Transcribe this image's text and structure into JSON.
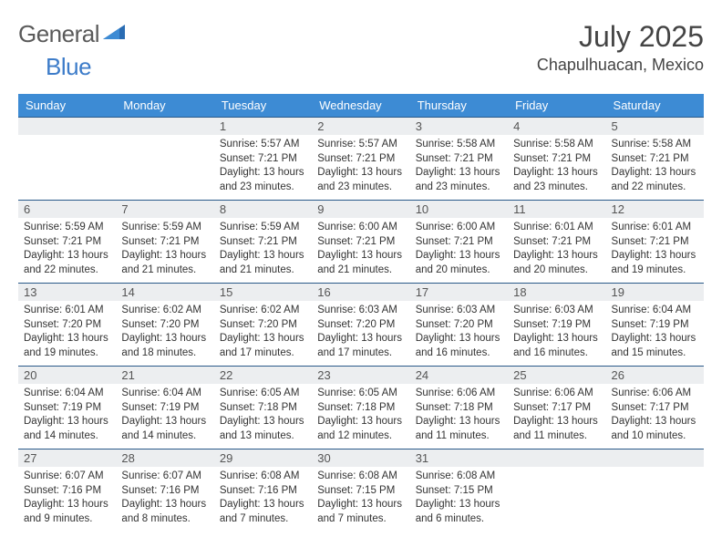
{
  "brand": {
    "word1": "General",
    "word2": "Blue"
  },
  "title": "July 2025",
  "location": "Chapulhuacan, Mexico",
  "colors": {
    "header_bg": "#3d8bd4",
    "header_text": "#ffffff",
    "daynum_bg": "#eceef0",
    "row_sep": "#2a5a8a",
    "logo_gray": "#5a5a5a",
    "logo_blue": "#3d7cc9"
  },
  "day_headers": [
    "Sunday",
    "Monday",
    "Tuesday",
    "Wednesday",
    "Thursday",
    "Friday",
    "Saturday"
  ],
  "weeks": [
    [
      {
        "num": "",
        "sunrise": "",
        "sunset": "",
        "daylight": ""
      },
      {
        "num": "",
        "sunrise": "",
        "sunset": "",
        "daylight": ""
      },
      {
        "num": "1",
        "sunrise": "Sunrise: 5:57 AM",
        "sunset": "Sunset: 7:21 PM",
        "daylight": "Daylight: 13 hours and 23 minutes."
      },
      {
        "num": "2",
        "sunrise": "Sunrise: 5:57 AM",
        "sunset": "Sunset: 7:21 PM",
        "daylight": "Daylight: 13 hours and 23 minutes."
      },
      {
        "num": "3",
        "sunrise": "Sunrise: 5:58 AM",
        "sunset": "Sunset: 7:21 PM",
        "daylight": "Daylight: 13 hours and 23 minutes."
      },
      {
        "num": "4",
        "sunrise": "Sunrise: 5:58 AM",
        "sunset": "Sunset: 7:21 PM",
        "daylight": "Daylight: 13 hours and 23 minutes."
      },
      {
        "num": "5",
        "sunrise": "Sunrise: 5:58 AM",
        "sunset": "Sunset: 7:21 PM",
        "daylight": "Daylight: 13 hours and 22 minutes."
      }
    ],
    [
      {
        "num": "6",
        "sunrise": "Sunrise: 5:59 AM",
        "sunset": "Sunset: 7:21 PM",
        "daylight": "Daylight: 13 hours and 22 minutes."
      },
      {
        "num": "7",
        "sunrise": "Sunrise: 5:59 AM",
        "sunset": "Sunset: 7:21 PM",
        "daylight": "Daylight: 13 hours and 21 minutes."
      },
      {
        "num": "8",
        "sunrise": "Sunrise: 5:59 AM",
        "sunset": "Sunset: 7:21 PM",
        "daylight": "Daylight: 13 hours and 21 minutes."
      },
      {
        "num": "9",
        "sunrise": "Sunrise: 6:00 AM",
        "sunset": "Sunset: 7:21 PM",
        "daylight": "Daylight: 13 hours and 21 minutes."
      },
      {
        "num": "10",
        "sunrise": "Sunrise: 6:00 AM",
        "sunset": "Sunset: 7:21 PM",
        "daylight": "Daylight: 13 hours and 20 minutes."
      },
      {
        "num": "11",
        "sunrise": "Sunrise: 6:01 AM",
        "sunset": "Sunset: 7:21 PM",
        "daylight": "Daylight: 13 hours and 20 minutes."
      },
      {
        "num": "12",
        "sunrise": "Sunrise: 6:01 AM",
        "sunset": "Sunset: 7:21 PM",
        "daylight": "Daylight: 13 hours and 19 minutes."
      }
    ],
    [
      {
        "num": "13",
        "sunrise": "Sunrise: 6:01 AM",
        "sunset": "Sunset: 7:20 PM",
        "daylight": "Daylight: 13 hours and 19 minutes."
      },
      {
        "num": "14",
        "sunrise": "Sunrise: 6:02 AM",
        "sunset": "Sunset: 7:20 PM",
        "daylight": "Daylight: 13 hours and 18 minutes."
      },
      {
        "num": "15",
        "sunrise": "Sunrise: 6:02 AM",
        "sunset": "Sunset: 7:20 PM",
        "daylight": "Daylight: 13 hours and 17 minutes."
      },
      {
        "num": "16",
        "sunrise": "Sunrise: 6:03 AM",
        "sunset": "Sunset: 7:20 PM",
        "daylight": "Daylight: 13 hours and 17 minutes."
      },
      {
        "num": "17",
        "sunrise": "Sunrise: 6:03 AM",
        "sunset": "Sunset: 7:20 PM",
        "daylight": "Daylight: 13 hours and 16 minutes."
      },
      {
        "num": "18",
        "sunrise": "Sunrise: 6:03 AM",
        "sunset": "Sunset: 7:19 PM",
        "daylight": "Daylight: 13 hours and 16 minutes."
      },
      {
        "num": "19",
        "sunrise": "Sunrise: 6:04 AM",
        "sunset": "Sunset: 7:19 PM",
        "daylight": "Daylight: 13 hours and 15 minutes."
      }
    ],
    [
      {
        "num": "20",
        "sunrise": "Sunrise: 6:04 AM",
        "sunset": "Sunset: 7:19 PM",
        "daylight": "Daylight: 13 hours and 14 minutes."
      },
      {
        "num": "21",
        "sunrise": "Sunrise: 6:04 AM",
        "sunset": "Sunset: 7:19 PM",
        "daylight": "Daylight: 13 hours and 14 minutes."
      },
      {
        "num": "22",
        "sunrise": "Sunrise: 6:05 AM",
        "sunset": "Sunset: 7:18 PM",
        "daylight": "Daylight: 13 hours and 13 minutes."
      },
      {
        "num": "23",
        "sunrise": "Sunrise: 6:05 AM",
        "sunset": "Sunset: 7:18 PM",
        "daylight": "Daylight: 13 hours and 12 minutes."
      },
      {
        "num": "24",
        "sunrise": "Sunrise: 6:06 AM",
        "sunset": "Sunset: 7:18 PM",
        "daylight": "Daylight: 13 hours and 11 minutes."
      },
      {
        "num": "25",
        "sunrise": "Sunrise: 6:06 AM",
        "sunset": "Sunset: 7:17 PM",
        "daylight": "Daylight: 13 hours and 11 minutes."
      },
      {
        "num": "26",
        "sunrise": "Sunrise: 6:06 AM",
        "sunset": "Sunset: 7:17 PM",
        "daylight": "Daylight: 13 hours and 10 minutes."
      }
    ],
    [
      {
        "num": "27",
        "sunrise": "Sunrise: 6:07 AM",
        "sunset": "Sunset: 7:16 PM",
        "daylight": "Daylight: 13 hours and 9 minutes."
      },
      {
        "num": "28",
        "sunrise": "Sunrise: 6:07 AM",
        "sunset": "Sunset: 7:16 PM",
        "daylight": "Daylight: 13 hours and 8 minutes."
      },
      {
        "num": "29",
        "sunrise": "Sunrise: 6:08 AM",
        "sunset": "Sunset: 7:16 PM",
        "daylight": "Daylight: 13 hours and 7 minutes."
      },
      {
        "num": "30",
        "sunrise": "Sunrise: 6:08 AM",
        "sunset": "Sunset: 7:15 PM",
        "daylight": "Daylight: 13 hours and 7 minutes."
      },
      {
        "num": "31",
        "sunrise": "Sunrise: 6:08 AM",
        "sunset": "Sunset: 7:15 PM",
        "daylight": "Daylight: 13 hours and 6 minutes."
      },
      {
        "num": "",
        "sunrise": "",
        "sunset": "",
        "daylight": ""
      },
      {
        "num": "",
        "sunrise": "",
        "sunset": "",
        "daylight": ""
      }
    ]
  ]
}
